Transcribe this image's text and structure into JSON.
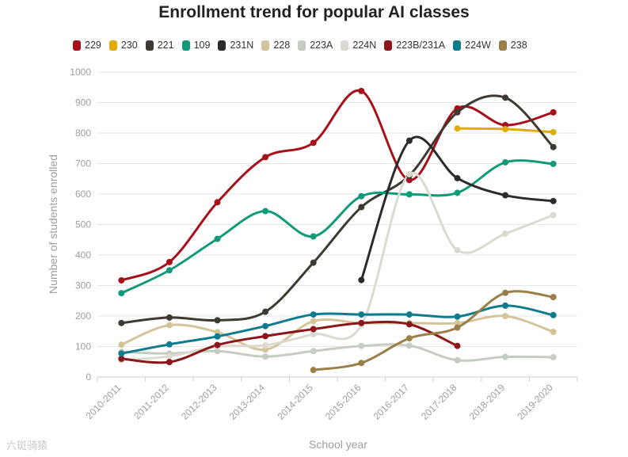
{
  "chart_data": {
    "type": "line",
    "title": "Enrollment trend for popular AI classes",
    "xlabel": "School year",
    "ylabel": "Number of students enrolled",
    "ylim": [
      0,
      1000
    ],
    "yticks": [
      0,
      100,
      200,
      300,
      400,
      500,
      600,
      700,
      800,
      900,
      1000
    ],
    "grid": true,
    "legend_position": "top",
    "curve": "smooth",
    "categories": [
      "2010-2011",
      "2011-2012",
      "2012-2013",
      "2013-2014",
      "2014-2015",
      "2015-2016",
      "2016-2017",
      "2017-2018",
      "2018-2019",
      "2019-2020"
    ],
    "series": [
      {
        "name": "229",
        "color": "#a6101a",
        "values": [
          317,
          377,
          573,
          721,
          768,
          938,
          646,
          881,
          826,
          868
        ]
      },
      {
        "name": "230",
        "color": "#e2ab0a",
        "values": [
          null,
          null,
          null,
          null,
          null,
          null,
          null,
          815,
          813,
          803
        ]
      },
      {
        "name": "221",
        "color": "#3e3a32",
        "values": [
          177,
          195,
          186,
          214,
          375,
          557,
          661,
          868,
          916,
          754
        ]
      },
      {
        "name": "109",
        "color": "#119a7a",
        "values": [
          275,
          350,
          453,
          544,
          461,
          593,
          599,
          604,
          704,
          699
        ]
      },
      {
        "name": "231N",
        "color": "#2b2b2b",
        "values": [
          null,
          null,
          null,
          null,
          null,
          318,
          775,
          652,
          596,
          577
        ]
      },
      {
        "name": "228",
        "color": "#d4c49b",
        "values": [
          106,
          170,
          147,
          90,
          183,
          177,
          177,
          177,
          200,
          148
        ]
      },
      {
        "name": "223A",
        "color": "#c5cdc3",
        "values": [
          82,
          77,
          85,
          67,
          85,
          102,
          103,
          55,
          66,
          65
        ]
      },
      {
        "name": "224N",
        "color": "#dcdad0",
        "values": [
          55,
          68,
          100,
          104,
          140,
          170,
          665,
          416,
          470,
          531
        ]
      },
      {
        "name": "223B/231A",
        "color": "#8c1619",
        "values": [
          60,
          49,
          105,
          134,
          157,
          177,
          173,
          102,
          null,
          null
        ]
      },
      {
        "name": "224W",
        "color": "#0f7c8e",
        "values": [
          77,
          107,
          133,
          167,
          205,
          205,
          205,
          198,
          234,
          203
        ]
      },
      {
        "name": "238",
        "color": "#9a8048",
        "values": [
          null,
          null,
          null,
          null,
          23,
          46,
          127,
          162,
          276,
          262
        ]
      }
    ]
  },
  "watermark": "六斑骑猿"
}
